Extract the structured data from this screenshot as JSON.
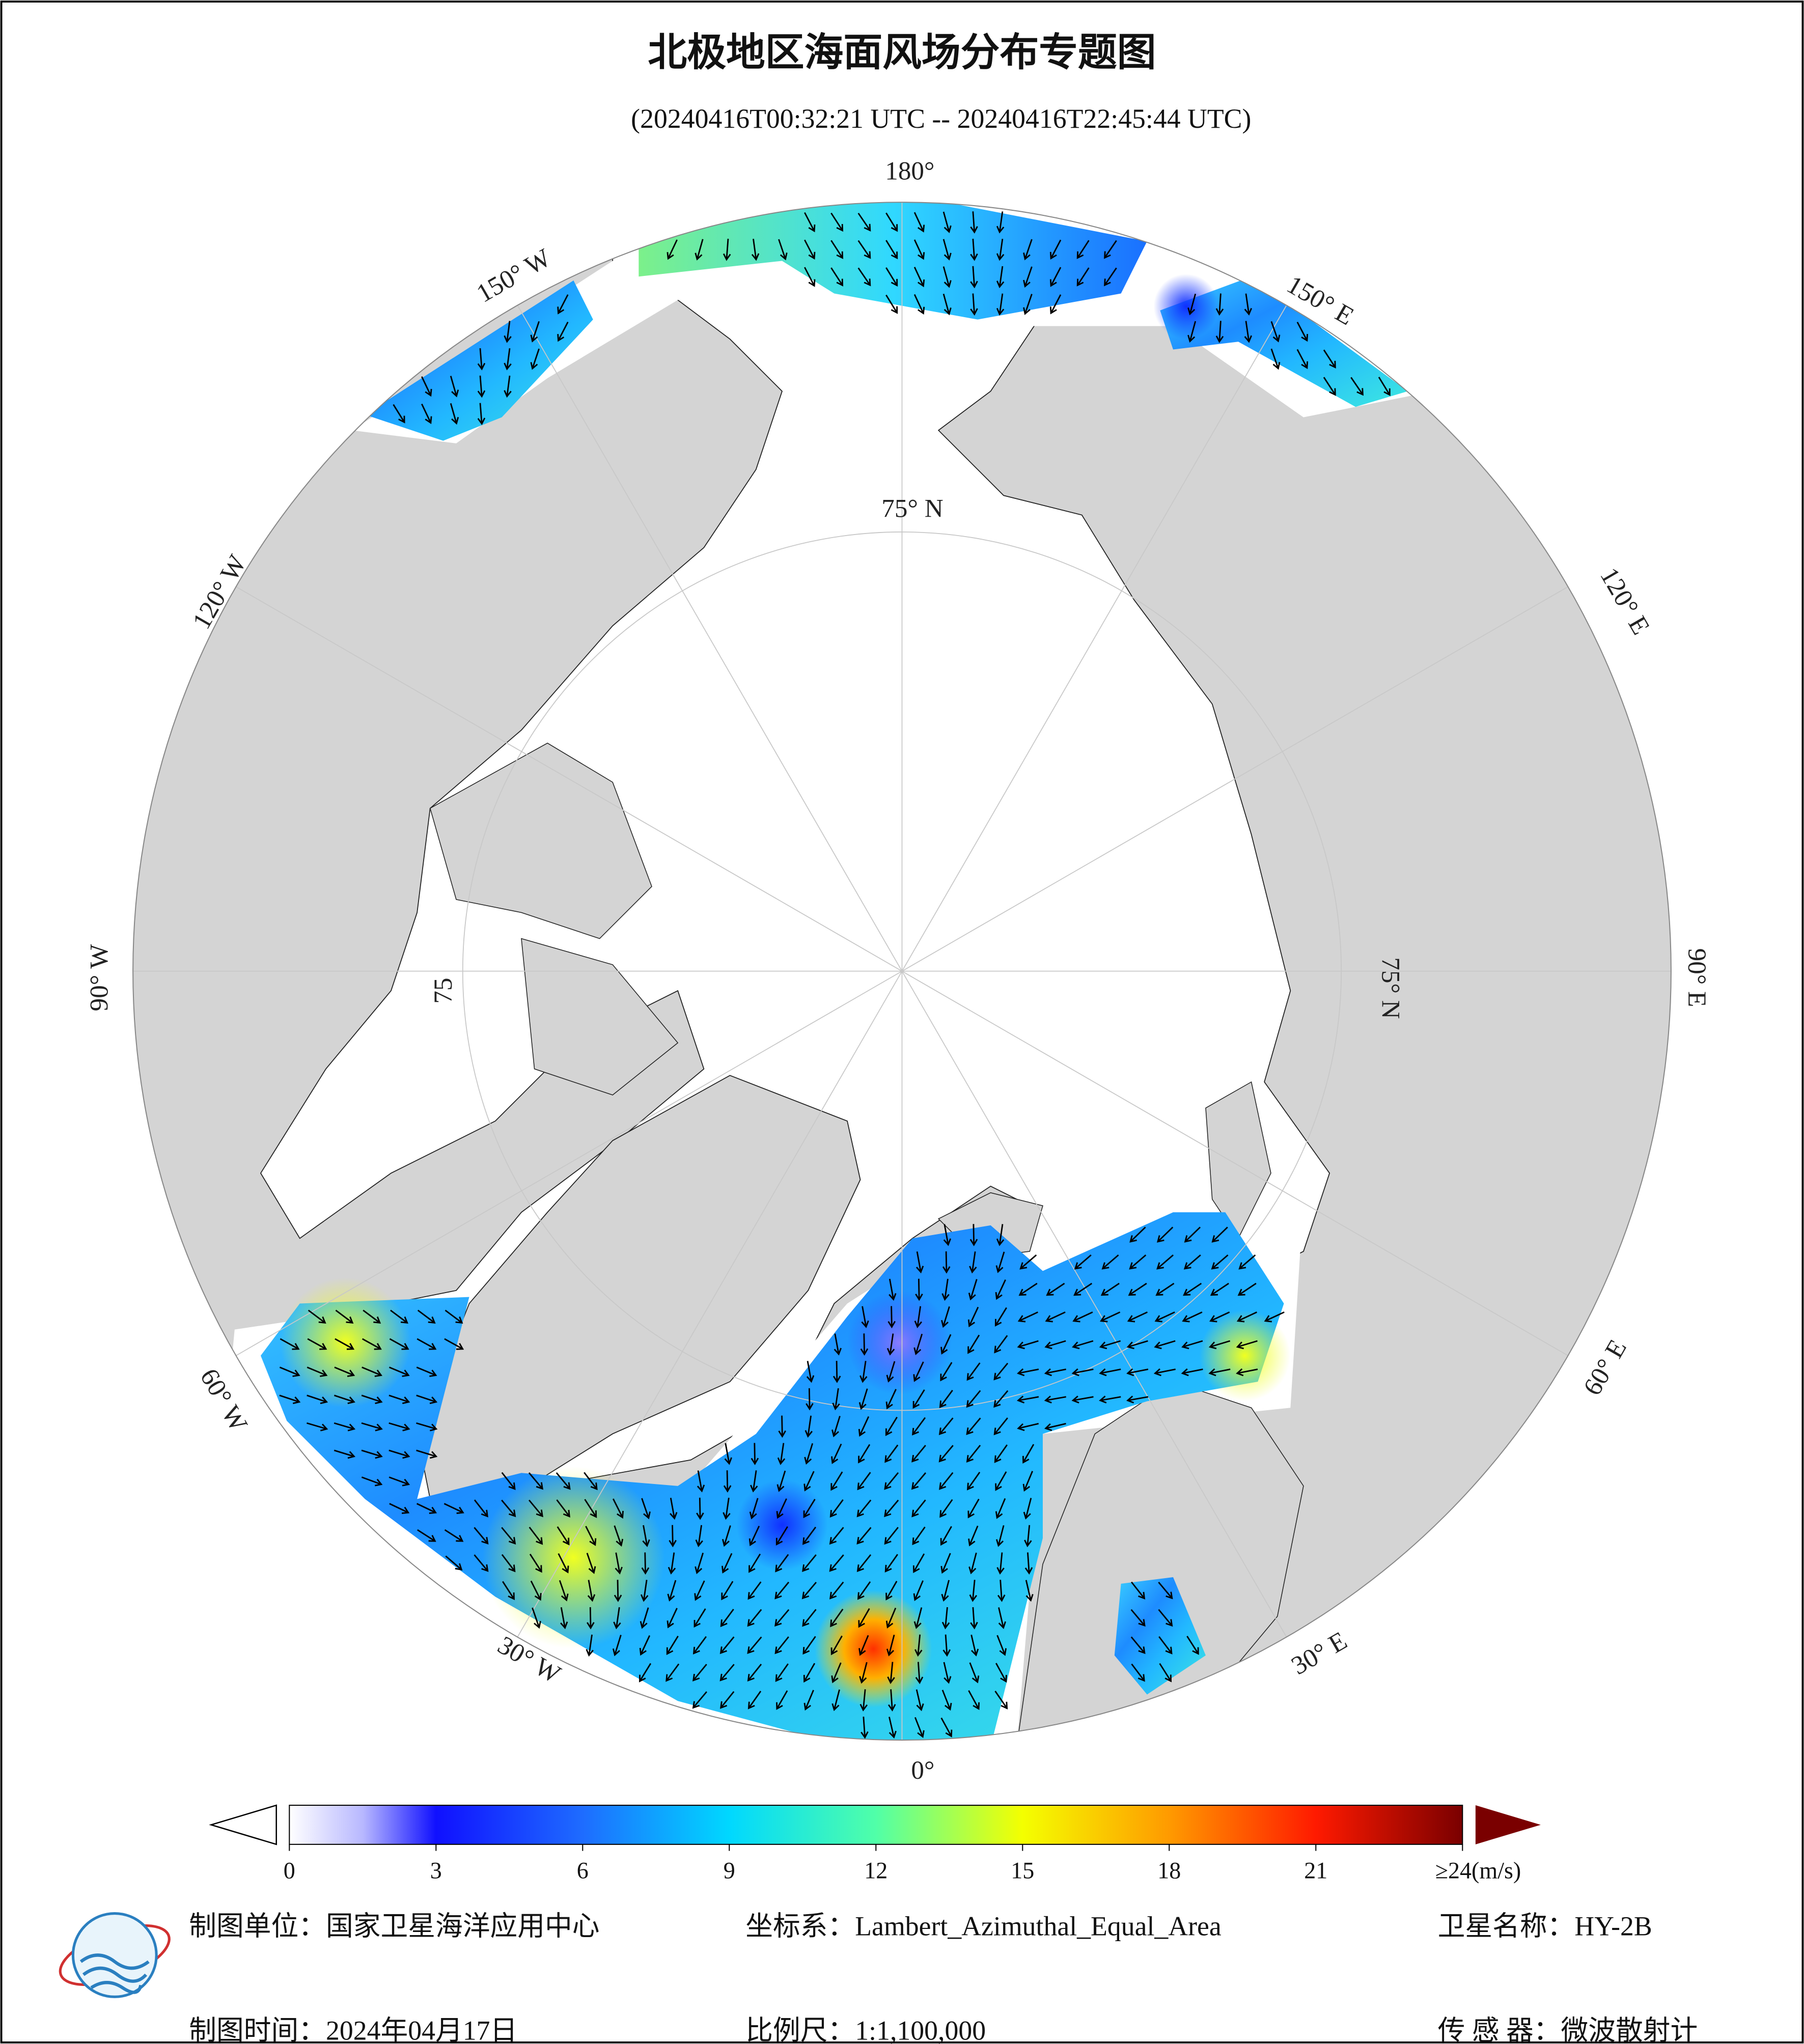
{
  "title": "北极地区海面风场分布专题图",
  "subtitle": "(20240416T00:32:21 UTC -- 20240416T22:45:44 UTC)",
  "map": {
    "longitude_labels": [
      "180°",
      "150° E",
      "120° E",
      "90° E",
      "60° E",
      "30° E",
      "0°",
      "30° W",
      "60° W",
      "90° W",
      "120° W",
      "150° W"
    ],
    "latitude_labels": [
      "75° N",
      "75° N",
      "75"
    ]
  },
  "colorbar": {
    "lim": [
      0,
      24
    ],
    "ticks": [
      0,
      3,
      6,
      9,
      12,
      15,
      18,
      21,
      {
        "value": 24,
        "label": "≥24(m/s)"
      }
    ],
    "stops": [
      {
        "value": 0,
        "color": "#ffffff"
      },
      {
        "value": 1.5,
        "color": "#b8b8ff"
      },
      {
        "value": 3,
        "color": "#1010ff"
      },
      {
        "value": 6,
        "color": "#1e6cff"
      },
      {
        "value": 9,
        "color": "#00d8ff"
      },
      {
        "value": 12,
        "color": "#50ffa8"
      },
      {
        "value": 15,
        "color": "#f4ff00"
      },
      {
        "value": 18,
        "color": "#ff9a00"
      },
      {
        "value": 21,
        "color": "#ff1a00"
      },
      {
        "value": 24,
        "color": "#7a0000"
      }
    ]
  },
  "footer": {
    "unit": "制图单位：国家卫星海洋应用中心",
    "projection": "坐标系：Lambert_Azimuthal_Equal_Area",
    "satellite": "卫星名称：HY-2B",
    "date": "制图时间：2024年04月17日",
    "scale": "比例尺：1:1,100,000",
    "sensor": "传 感 器：微波散射计"
  }
}
